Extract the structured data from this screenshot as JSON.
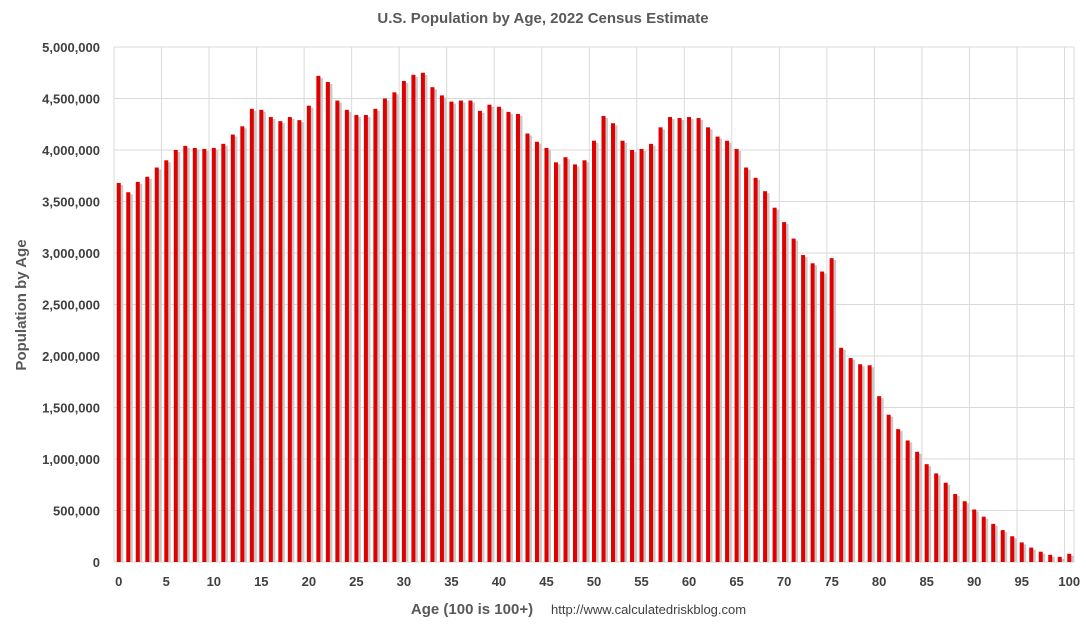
{
  "chart_data": {
    "type": "bar",
    "title": "U.S. Population by Age, 2022 Census Estimate",
    "xlabel": "Age (100 is 100+)",
    "ylabel": "Population by Age",
    "source": "http://www.calculatedriskblog.com",
    "ylim": [
      0,
      5000000
    ],
    "ytick_values": [
      0,
      500000,
      1000000,
      1500000,
      2000000,
      2500000,
      3000000,
      3500000,
      4000000,
      4500000,
      5000000
    ],
    "ytick_labels": [
      "0",
      "500,000",
      "1,000,000",
      "1,500,000",
      "2,000,000",
      "2,500,000",
      "3,000,000",
      "3,500,000",
      "4,000,000",
      "4,500,000",
      "5,000,000"
    ],
    "xtick_labels": [
      "0",
      "5",
      "10",
      "15",
      "20",
      "25",
      "30",
      "35",
      "40",
      "45",
      "50",
      "55",
      "60",
      "65",
      "70",
      "75",
      "80",
      "85",
      "90",
      "95",
      "100"
    ],
    "grid": true,
    "legend": "none",
    "bar_color": "#e00000",
    "x": [
      0,
      1,
      2,
      3,
      4,
      5,
      6,
      7,
      8,
      9,
      10,
      11,
      12,
      13,
      14,
      15,
      16,
      17,
      18,
      19,
      20,
      21,
      22,
      23,
      24,
      25,
      26,
      27,
      28,
      29,
      30,
      31,
      32,
      33,
      34,
      35,
      36,
      37,
      38,
      39,
      40,
      41,
      42,
      43,
      44,
      45,
      46,
      47,
      48,
      49,
      50,
      51,
      52,
      53,
      54,
      55,
      56,
      57,
      58,
      59,
      60,
      61,
      62,
      63,
      64,
      65,
      66,
      67,
      68,
      69,
      70,
      71,
      72,
      73,
      74,
      75,
      76,
      77,
      78,
      79,
      80,
      81,
      82,
      83,
      84,
      85,
      86,
      87,
      88,
      89,
      90,
      91,
      92,
      93,
      94,
      95,
      96,
      97,
      98,
      99,
      100
    ],
    "values": [
      3680000,
      3590000,
      3690000,
      3740000,
      3830000,
      3900000,
      4000000,
      4040000,
      4020000,
      4010000,
      4020000,
      4060000,
      4150000,
      4230000,
      4400000,
      4390000,
      4320000,
      4280000,
      4320000,
      4290000,
      4430000,
      4720000,
      4660000,
      4480000,
      4390000,
      4340000,
      4340000,
      4400000,
      4500000,
      4560000,
      4670000,
      4730000,
      4750000,
      4610000,
      4530000,
      4470000,
      4480000,
      4480000,
      4380000,
      4440000,
      4420000,
      4370000,
      4350000,
      4160000,
      4080000,
      4020000,
      3880000,
      3930000,
      3860000,
      3900000,
      4090000,
      4330000,
      4260000,
      4090000,
      4000000,
      4010000,
      4060000,
      4220000,
      4320000,
      4310000,
      4320000,
      4310000,
      4220000,
      4130000,
      4090000,
      4010000,
      3830000,
      3730000,
      3600000,
      3440000,
      3300000,
      3140000,
      2980000,
      2900000,
      2820000,
      2950000,
      2080000,
      1980000,
      1920000,
      1910000,
      1610000,
      1430000,
      1290000,
      1180000,
      1070000,
      950000,
      860000,
      770000,
      660000,
      590000,
      510000,
      440000,
      370000,
      310000,
      250000,
      190000,
      140000,
      100000,
      70000,
      50000,
      80000
    ]
  }
}
